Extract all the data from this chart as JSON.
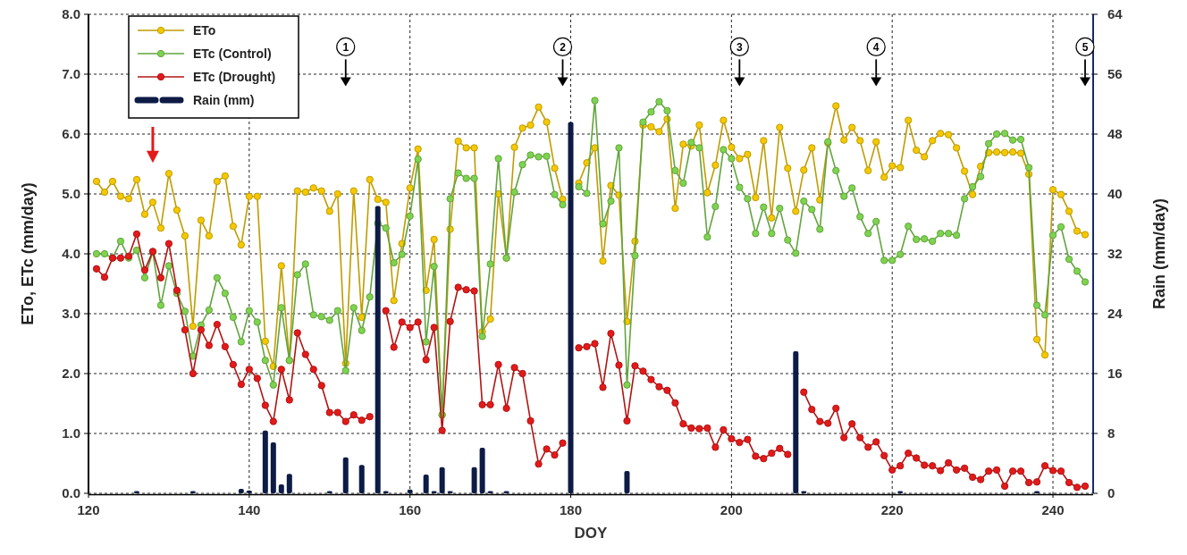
{
  "chart_data": {
    "type": "line",
    "xlabel": "DOY",
    "ylabel": "ETo, ETc (mm/day)",
    "y2label": "Rain (mm/day)",
    "xlim": [
      120,
      245
    ],
    "xticks": [
      120,
      140,
      160,
      180,
      200,
      220,
      240
    ],
    "ylim": [
      0,
      8
    ],
    "yticks": [
      {
        "value": 0,
        "label": "0.0"
      },
      {
        "value": 1,
        "label": "1.0"
      },
      {
        "value": 2,
        "label": "2.0"
      },
      {
        "value": 3,
        "label": "3.0"
      },
      {
        "value": 4,
        "label": "4.0"
      },
      {
        "value": 5,
        "label": "5.0"
      },
      {
        "value": 6,
        "label": "6.0"
      },
      {
        "value": 7,
        "label": "7.0"
      },
      {
        "value": 8,
        "label": "8.0"
      }
    ],
    "y2lim": [
      0,
      64
    ],
    "y2ticks": [
      0,
      8,
      16,
      24,
      32,
      40,
      48,
      56,
      64
    ],
    "grid": true,
    "legend": "top left",
    "marker": "circle",
    "x": [
      121,
      122,
      123,
      124,
      125,
      126,
      127,
      128,
      129,
      130,
      131,
      132,
      133,
      134,
      135,
      136,
      137,
      138,
      139,
      140,
      141,
      142,
      143,
      144,
      145,
      146,
      147,
      148,
      149,
      150,
      151,
      152,
      153,
      154,
      155,
      156,
      157,
      158,
      159,
      160,
      161,
      162,
      163,
      164,
      165,
      166,
      167,
      168,
      169,
      170,
      171,
      172,
      173,
      174,
      175,
      176,
      177,
      178,
      179,
      180,
      181,
      182,
      183,
      184,
      185,
      186,
      187,
      188,
      189,
      190,
      191,
      192,
      193,
      194,
      195,
      196,
      197,
      198,
      199,
      200,
      201,
      202,
      203,
      204,
      205,
      206,
      207,
      208,
      209,
      210,
      211,
      212,
      213,
      214,
      215,
      216,
      217,
      218,
      219,
      220,
      221,
      222,
      223,
      224,
      225,
      226,
      227,
      228,
      229,
      230,
      231,
      232,
      233,
      234,
      235,
      236,
      237,
      238,
      239,
      240,
      241,
      242,
      243,
      244
    ],
    "series": [
      {
        "name": "ETo",
        "color": "#f5c800",
        "values": [
          5.21,
          5.03,
          5.21,
          4.96,
          4.92,
          5.24,
          4.66,
          4.86,
          4.43,
          5.34,
          4.73,
          4.3,
          2.79,
          4.56,
          4.3,
          5.21,
          5.3,
          4.46,
          4.15,
          4.96,
          4.96,
          2.54,
          2.12,
          3.8,
          2.22,
          5.05,
          5.03,
          5.1,
          5.05,
          4.71,
          5.0,
          2.17,
          5.05,
          2.94,
          5.24,
          4.91,
          4.86,
          3.22,
          4.17,
          5.1,
          5.75,
          3.39,
          4.24,
          1.31,
          4.41,
          5.88,
          5.77,
          5.77,
          2.7,
          2.91,
          5.0,
          3.93,
          5.78,
          6.1,
          6.15,
          6.45,
          6.2,
          5.43,
          4.91,
          null,
          5.18,
          5.52,
          5.77,
          3.88,
          5.14,
          4.98,
          2.87,
          4.21,
          6.15,
          6.12,
          6.04,
          6.25,
          4.76,
          5.83,
          5.8,
          6.15,
          5.02,
          5.48,
          6.23,
          5.78,
          5.59,
          5.66,
          4.94,
          5.89,
          4.6,
          6.11,
          5.43,
          4.71,
          5.4,
          5.77,
          4.9,
          5.85,
          6.47,
          5.9,
          6.11,
          5.89,
          5.39,
          5.87,
          5.28,
          5.47,
          5.44,
          6.23,
          5.73,
          5.62,
          5.89,
          6.01,
          5.99,
          5.77,
          5.38,
          4.99,
          5.46,
          5.69,
          5.7,
          5.69,
          5.7,
          5.68,
          5.33,
          2.57,
          2.31,
          5.07,
          4.99,
          4.71,
          4.38,
          4.32
        ]
      },
      {
        "name": "ETc (Control)",
        "color": "#7ed34f",
        "values": [
          4.0,
          4.0,
          3.93,
          4.21,
          3.93,
          4.06,
          3.6,
          4.03,
          3.14,
          3.8,
          3.34,
          3.04,
          2.29,
          2.81,
          3.06,
          3.6,
          3.34,
          2.94,
          2.53,
          3.05,
          2.86,
          2.22,
          1.81,
          3.1,
          2.22,
          3.65,
          3.83,
          2.98,
          2.95,
          2.89,
          3.05,
          2.05,
          3.1,
          2.72,
          3.28,
          4.51,
          4.43,
          3.85,
          3.99,
          4.63,
          5.58,
          2.53,
          3.79,
          1.31,
          4.92,
          5.35,
          5.26,
          5.26,
          2.62,
          3.83,
          5.59,
          3.93,
          5.03,
          5.49,
          5.65,
          5.62,
          5.63,
          4.99,
          4.82,
          null,
          5.12,
          5.01,
          6.56,
          4.5,
          4.88,
          5.77,
          1.81,
          3.97,
          6.2,
          6.37,
          6.54,
          6.39,
          5.39,
          5.18,
          5.86,
          5.77,
          4.28,
          4.79,
          5.74,
          5.59,
          5.11,
          4.92,
          4.34,
          4.78,
          4.34,
          4.76,
          4.23,
          4.01,
          4.88,
          4.74,
          4.41,
          5.87,
          5.39,
          4.96,
          5.1,
          4.62,
          4.34,
          4.54,
          3.89,
          3.89,
          3.99,
          4.46,
          4.24,
          4.25,
          4.21,
          4.34,
          4.34,
          4.31,
          4.92,
          5.12,
          5.29,
          5.84,
          6.0,
          6.01,
          5.9,
          5.91,
          5.44,
          3.14,
          2.98,
          4.31,
          4.45,
          3.91,
          3.71,
          3.53
        ]
      },
      {
        "name": "ETc (Drought)",
        "color": "#e31a1a",
        "values": [
          3.75,
          3.61,
          3.93,
          3.93,
          3.96,
          4.33,
          3.73,
          4.04,
          3.6,
          4.17,
          3.39,
          2.73,
          2.0,
          2.73,
          2.47,
          2.82,
          2.45,
          2.15,
          1.82,
          2.07,
          1.92,
          1.47,
          1.2,
          2.07,
          1.56,
          2.68,
          2.32,
          2.07,
          1.8,
          1.35,
          1.35,
          1.2,
          1.31,
          1.22,
          1.28,
          null,
          3.05,
          2.44,
          2.86,
          2.77,
          2.86,
          2.23,
          2.77,
          1.05,
          2.87,
          3.44,
          3.4,
          3.38,
          1.48,
          1.48,
          2.15,
          1.42,
          2.1,
          2.0,
          1.21,
          0.49,
          0.74,
          0.64,
          0.84,
          null,
          2.43,
          2.45,
          2.5,
          1.77,
          2.67,
          2.14,
          1.21,
          2.13,
          2.04,
          1.9,
          1.78,
          1.72,
          1.51,
          1.16,
          1.09,
          1.08,
          1.09,
          0.77,
          1.06,
          0.91,
          0.85,
          0.9,
          0.62,
          0.58,
          0.67,
          0.75,
          0.65,
          null,
          1.69,
          1.4,
          1.2,
          1.17,
          1.42,
          0.93,
          1.16,
          0.93,
          0.77,
          0.86,
          0.63,
          0.39,
          0.46,
          0.67,
          0.59,
          0.47,
          0.46,
          0.38,
          0.51,
          0.39,
          0.42,
          0.27,
          0.23,
          0.37,
          0.39,
          0.12,
          0.37,
          0.37,
          0.18,
          0.19,
          0.46,
          0.38,
          0.37,
          0.18,
          0.1,
          0.12
        ]
      },
      {
        "name": "Rain (mm)",
        "type": "bar",
        "axis": "y2",
        "color": "#0d1b45",
        "x": [
          126,
          133,
          139,
          140,
          142,
          143,
          144,
          145,
          150,
          152,
          154,
          156,
          157,
          160,
          162,
          163,
          164,
          165,
          168,
          169,
          170,
          172,
          180,
          187,
          208,
          209,
          221,
          238
        ],
        "values": [
          0.3,
          0.3,
          0.6,
          0.4,
          8.4,
          6.8,
          1.2,
          2.6,
          0.3,
          4.8,
          3.8,
          38.4,
          0.3,
          0.5,
          2.5,
          0.3,
          3.5,
          0.3,
          3.5,
          6.1,
          0.3,
          0.3,
          49.6,
          3.0,
          19.0,
          0.3,
          0.3,
          0.3
        ]
      }
    ],
    "annotations": [
      "1",
      "2",
      "3",
      "4",
      "5"
    ]
  }
}
